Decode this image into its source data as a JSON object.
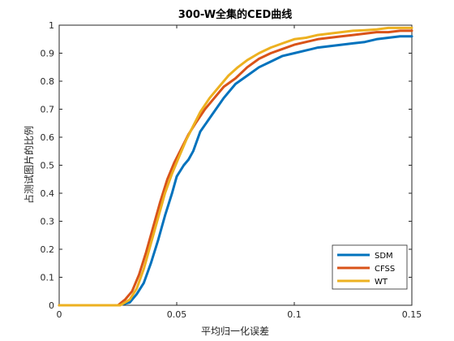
{
  "chart_data": {
    "type": "line",
    "title": "300-W全集的CED曲线",
    "xlabel": "平均归一化误差",
    "ylabel": "占测试图片的比例",
    "xlim": [
      0,
      0.15
    ],
    "ylim": [
      0,
      1
    ],
    "xticks": [
      0,
      0.05,
      0.1,
      0.15
    ],
    "xtick_labels": [
      "0",
      "0.05",
      "0.1",
      "0.15"
    ],
    "yticks": [
      0,
      0.1,
      0.2,
      0.3,
      0.4,
      0.5,
      0.6,
      0.7,
      0.8,
      0.9,
      1
    ],
    "ytick_labels": [
      "0",
      "0.1",
      "0.2",
      "0.3",
      "0.4",
      "0.5",
      "0.6",
      "0.7",
      "0.8",
      "0.9",
      "1"
    ],
    "grid": false,
    "legend_position": "bottom-right",
    "series": [
      {
        "name": "SDM",
        "color": "#0072BD",
        "x": [
          0,
          0.025,
          0.03,
          0.033,
          0.036,
          0.039,
          0.042,
          0.045,
          0.048,
          0.05,
          0.053,
          0.055,
          0.057,
          0.06,
          0.065,
          0.07,
          0.075,
          0.08,
          0.085,
          0.09,
          0.095,
          0.1,
          0.105,
          0.11,
          0.115,
          0.12,
          0.125,
          0.13,
          0.135,
          0.14,
          0.145,
          0.15
        ],
        "y": [
          0,
          0,
          0.01,
          0.04,
          0.08,
          0.15,
          0.23,
          0.32,
          0.4,
          0.46,
          0.5,
          0.52,
          0.55,
          0.62,
          0.68,
          0.74,
          0.79,
          0.82,
          0.85,
          0.87,
          0.89,
          0.9,
          0.91,
          0.92,
          0.925,
          0.93,
          0.935,
          0.94,
          0.95,
          0.955,
          0.96,
          0.96
        ]
      },
      {
        "name": "CFSS",
        "color": "#D95319",
        "x": [
          0,
          0.025,
          0.028,
          0.031,
          0.034,
          0.037,
          0.04,
          0.043,
          0.046,
          0.049,
          0.052,
          0.055,
          0.058,
          0.062,
          0.066,
          0.07,
          0.075,
          0.08,
          0.085,
          0.09,
          0.095,
          0.1,
          0.105,
          0.11,
          0.115,
          0.12,
          0.125,
          0.13,
          0.135,
          0.14,
          0.145,
          0.15
        ],
        "y": [
          0,
          0,
          0.02,
          0.05,
          0.11,
          0.19,
          0.28,
          0.37,
          0.45,
          0.51,
          0.56,
          0.61,
          0.65,
          0.7,
          0.74,
          0.78,
          0.81,
          0.85,
          0.88,
          0.9,
          0.915,
          0.93,
          0.94,
          0.95,
          0.955,
          0.96,
          0.965,
          0.97,
          0.975,
          0.975,
          0.98,
          0.98
        ]
      },
      {
        "name": "WT",
        "color": "#EDB120",
        "x": [
          0,
          0.026,
          0.03,
          0.033,
          0.036,
          0.039,
          0.042,
          0.045,
          0.048,
          0.051,
          0.054,
          0.057,
          0.06,
          0.064,
          0.068,
          0.072,
          0.076,
          0.08,
          0.085,
          0.09,
          0.095,
          0.1,
          0.105,
          0.11,
          0.115,
          0.12,
          0.125,
          0.13,
          0.135,
          0.14,
          0.145,
          0.15
        ],
        "y": [
          0,
          0,
          0.02,
          0.06,
          0.13,
          0.22,
          0.31,
          0.4,
          0.47,
          0.53,
          0.59,
          0.64,
          0.69,
          0.74,
          0.78,
          0.82,
          0.85,
          0.875,
          0.9,
          0.92,
          0.935,
          0.95,
          0.955,
          0.965,
          0.97,
          0.975,
          0.98,
          0.982,
          0.985,
          0.99,
          0.99,
          0.99
        ]
      }
    ]
  }
}
